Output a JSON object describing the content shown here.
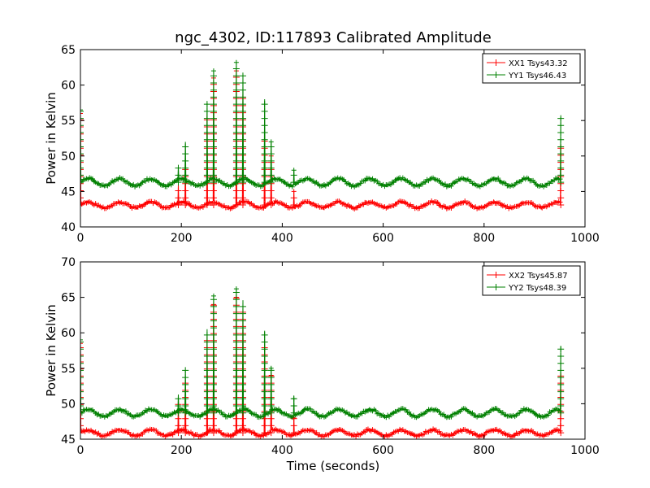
{
  "chart_data": [
    {
      "type": "line",
      "title": "ngc_4302, ID:117893 Calibrated Amplitude",
      "xlabel": "",
      "ylabel": "Power in Kelvin",
      "xlim": [
        0,
        1000
      ],
      "ylim": [
        40,
        65
      ],
      "xticks": [
        "0",
        "200",
        "400",
        "600",
        "800",
        "1000"
      ],
      "yticks": [
        "40",
        "45",
        "50",
        "55",
        "60",
        "65"
      ],
      "legend_position": "top-right",
      "series": [
        {
          "name": "XX1 Tsys43.32",
          "color": "#ff0000",
          "marker": "+",
          "baseline": 43.1,
          "ripple_amplitude": 0.4,
          "ripple_period_s": 62,
          "x_range": [
            0,
            952
          ],
          "spikes": [
            {
              "x": 0,
              "y": 56
            },
            {
              "x": 194,
              "y": 46
            },
            {
              "x": 208,
              "y": 49
            },
            {
              "x": 251,
              "y": 56
            },
            {
              "x": 264,
              "y": 61
            },
            {
              "x": 309,
              "y": 62
            },
            {
              "x": 322,
              "y": 59
            },
            {
              "x": 365,
              "y": 53
            },
            {
              "x": 378,
              "y": 50
            },
            {
              "x": 423,
              "y": 45
            },
            {
              "x": 952,
              "y": 51.5
            }
          ]
        },
        {
          "name": "YY1 Tsys46.43",
          "color": "#008000",
          "marker": "+",
          "baseline": 46.3,
          "ripple_amplitude": 0.5,
          "ripple_period_s": 62,
          "x_range": [
            0,
            952
          ],
          "spikes": [
            {
              "x": 0,
              "y": 56.5
            },
            {
              "x": 194,
              "y": 48.5
            },
            {
              "x": 208,
              "y": 52
            },
            {
              "x": 251,
              "y": 57.5
            },
            {
              "x": 264,
              "y": 62
            },
            {
              "x": 309,
              "y": 63.2
            },
            {
              "x": 322,
              "y": 61.5
            },
            {
              "x": 365,
              "y": 58
            },
            {
              "x": 378,
              "y": 52
            },
            {
              "x": 423,
              "y": 48
            },
            {
              "x": 952,
              "y": 55.5
            }
          ]
        }
      ]
    },
    {
      "type": "line",
      "title": "",
      "xlabel": "Time (seconds)",
      "ylabel": "Power in Kelvin",
      "xlim": [
        0,
        1000
      ],
      "ylim": [
        45,
        70
      ],
      "xticks": [
        "0",
        "200",
        "400",
        "600",
        "800",
        "1000"
      ],
      "yticks": [
        "45",
        "50",
        "55",
        "60",
        "65",
        "70"
      ],
      "legend_position": "top-right",
      "series": [
        {
          "name": "XX2 Tsys45.87",
          "color": "#ff0000",
          "marker": "+",
          "baseline": 45.9,
          "ripple_amplitude": 0.4,
          "ripple_period_s": 62,
          "x_range": [
            0,
            952
          ],
          "spikes": [
            {
              "x": 0,
              "y": 58.5
            },
            {
              "x": 194,
              "y": 50.5
            },
            {
              "x": 208,
              "y": 53
            },
            {
              "x": 251,
              "y": 59
            },
            {
              "x": 264,
              "y": 64
            },
            {
              "x": 309,
              "y": 65
            },
            {
              "x": 322,
              "y": 63
            },
            {
              "x": 365,
              "y": 58
            },
            {
              "x": 378,
              "y": 54
            },
            {
              "x": 423,
              "y": 48
            },
            {
              "x": 952,
              "y": 54.3
            }
          ]
        },
        {
          "name": "YY2 Tsys48.39",
          "color": "#008000",
          "marker": "+",
          "baseline": 48.7,
          "ripple_amplitude": 0.5,
          "ripple_period_s": 62,
          "x_range": [
            0,
            952
          ],
          "spikes": [
            {
              "x": 0,
              "y": 59
            },
            {
              "x": 194,
              "y": 51.3
            },
            {
              "x": 208,
              "y": 54.7
            },
            {
              "x": 251,
              "y": 60.5
            },
            {
              "x": 264,
              "y": 65.2
            },
            {
              "x": 309,
              "y": 66.2
            },
            {
              "x": 322,
              "y": 64.6
            },
            {
              "x": 365,
              "y": 60.3
            },
            {
              "x": 378,
              "y": 55
            },
            {
              "x": 423,
              "y": 50.7
            },
            {
              "x": 952,
              "y": 58.1
            }
          ]
        }
      ]
    }
  ]
}
